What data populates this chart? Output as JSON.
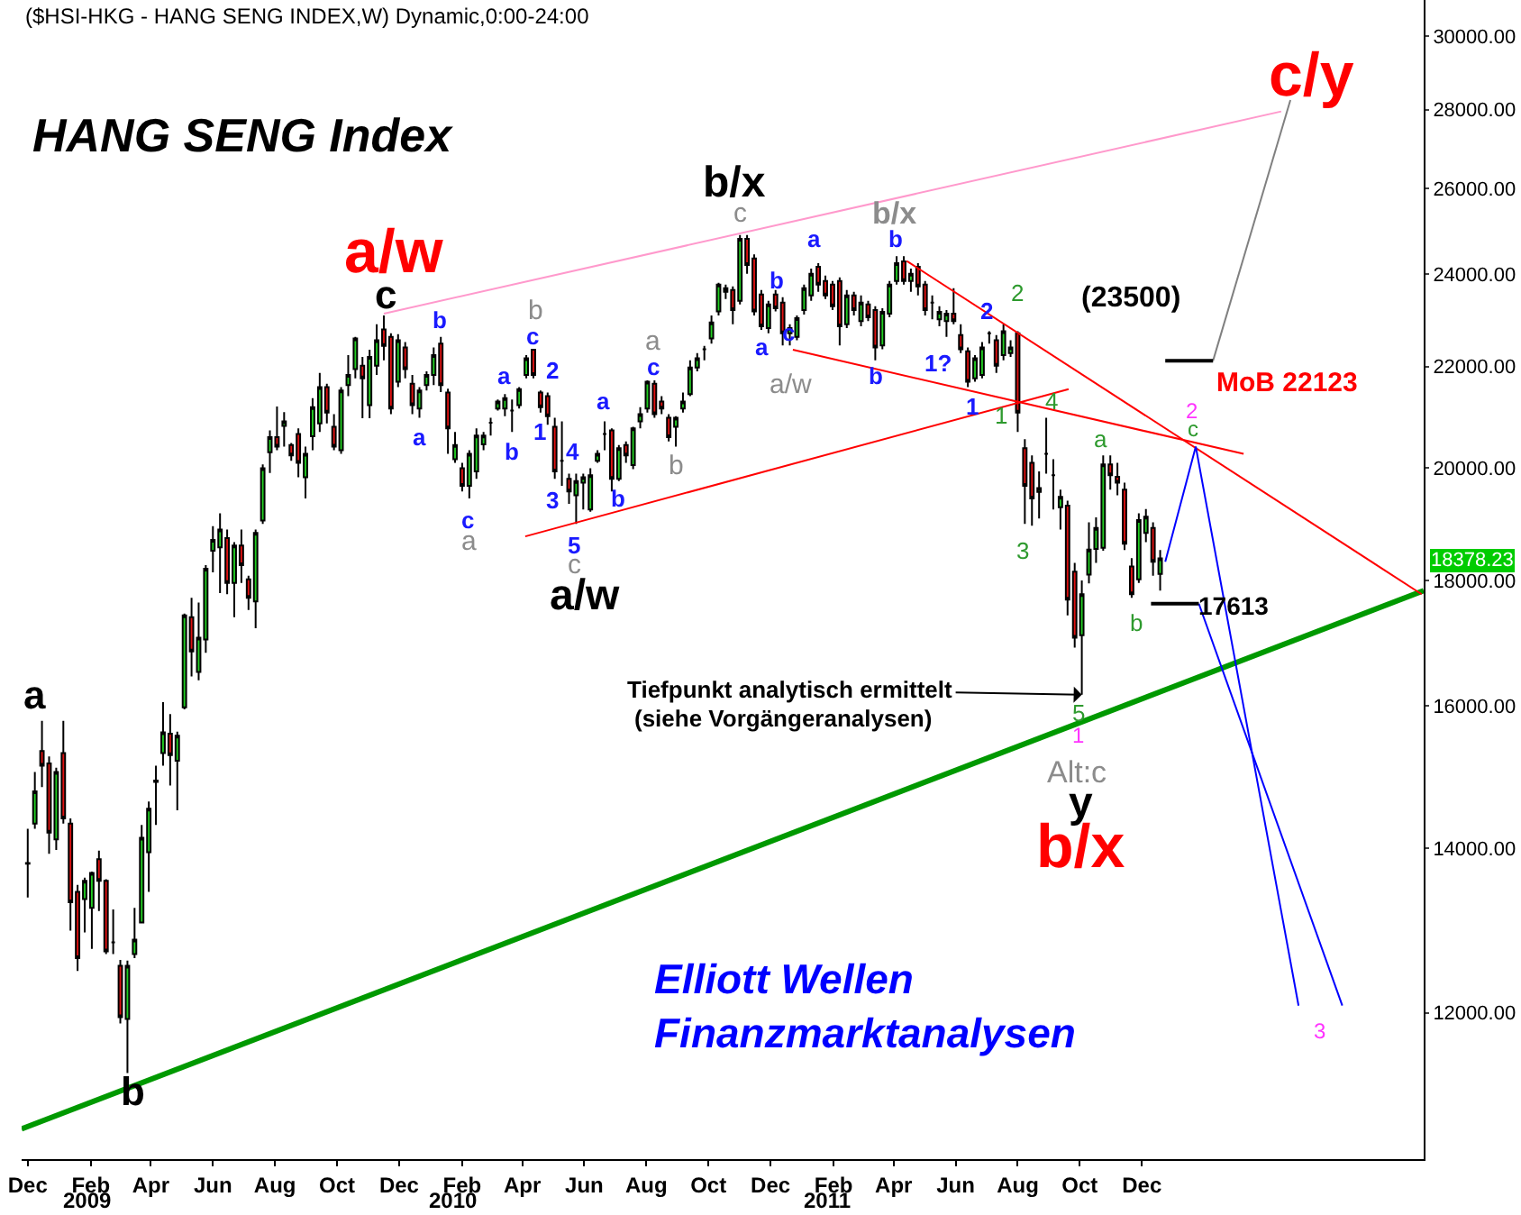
{
  "chart_data": {
    "type": "candlestick",
    "title": "HANG SENG Index",
    "subtitle": "($HSI-HKG - HANG SENG INDEX,W) Dynamic,0:00-24:00",
    "x": [
      "2008-12-01",
      "2008-12-08",
      "2008-12-15",
      "2008-12-22",
      "2008-12-29",
      "2009-01-05",
      "2009-01-12",
      "2009-01-19",
      "2009-01-26",
      "2009-02-02",
      "2009-02-09",
      "2009-02-16",
      "2009-02-23",
      "2009-03-02",
      "2009-03-09",
      "2009-03-16",
      "2009-03-23",
      "2009-03-30",
      "2009-04-06",
      "2009-04-13",
      "2009-04-20",
      "2009-04-27",
      "2009-05-04",
      "2009-05-11",
      "2009-05-18",
      "2009-05-25",
      "2009-06-01",
      "2009-06-08",
      "2009-06-15",
      "2009-06-22",
      "2009-06-29",
      "2009-07-06",
      "2009-07-13",
      "2009-07-20",
      "2009-07-27",
      "2009-08-03",
      "2009-08-10",
      "2009-08-17",
      "2009-08-24",
      "2009-08-31",
      "2009-09-07",
      "2009-09-14",
      "2009-09-21",
      "2009-09-28",
      "2009-10-05",
      "2009-10-12",
      "2009-10-19",
      "2009-10-26",
      "2009-11-02",
      "2009-11-09",
      "2009-11-16",
      "2009-11-23",
      "2009-11-30",
      "2009-12-07",
      "2009-12-14",
      "2009-12-21",
      "2009-12-28",
      "2010-01-04",
      "2010-01-11",
      "2010-01-18",
      "2010-01-25",
      "2010-02-01",
      "2010-02-08",
      "2010-02-15",
      "2010-02-22",
      "2010-03-01",
      "2010-03-08",
      "2010-03-15",
      "2010-03-22",
      "2010-03-29",
      "2010-04-05",
      "2010-04-12",
      "2010-04-19",
      "2010-04-26",
      "2010-05-03",
      "2010-05-10",
      "2010-05-17",
      "2010-05-24",
      "2010-05-31",
      "2010-06-07",
      "2010-06-14",
      "2010-06-21",
      "2010-06-28",
      "2010-07-05",
      "2010-07-12",
      "2010-07-19",
      "2010-07-26",
      "2010-08-02",
      "2010-08-09",
      "2010-08-16",
      "2010-08-23",
      "2010-08-30",
      "2010-09-06",
      "2010-09-13",
      "2010-09-20",
      "2010-09-27",
      "2010-10-04",
      "2010-10-11",
      "2010-10-18",
      "2010-10-25",
      "2010-11-01",
      "2010-11-08",
      "2010-11-15",
      "2010-11-22",
      "2010-11-29",
      "2010-12-06",
      "2010-12-13",
      "2010-12-20",
      "2010-12-27",
      "2011-01-03",
      "2011-01-10",
      "2011-01-17",
      "2011-01-24",
      "2011-01-31",
      "2011-02-07",
      "2011-02-14",
      "2011-02-21",
      "2011-02-28",
      "2011-03-07",
      "2011-03-14",
      "2011-03-21",
      "2011-03-28",
      "2011-04-04",
      "2011-04-11",
      "2011-04-18",
      "2011-04-25",
      "2011-05-02",
      "2011-05-09",
      "2011-05-16",
      "2011-05-23",
      "2011-05-30",
      "2011-06-06",
      "2011-06-13",
      "2011-06-20",
      "2011-06-27",
      "2011-07-04",
      "2011-07-11",
      "2011-07-18",
      "2011-07-25",
      "2011-08-01",
      "2011-08-08",
      "2011-08-15",
      "2011-08-22",
      "2011-08-29",
      "2011-09-05",
      "2011-09-12",
      "2011-09-19",
      "2011-09-26",
      "2011-10-03",
      "2011-10-10",
      "2011-10-17",
      "2011-10-24",
      "2011-10-31",
      "2011-11-07",
      "2011-11-14",
      "2011-11-21",
      "2011-11-28",
      "2011-12-05",
      "2011-12-12",
      "2011-12-19"
    ],
    "ohlc": [
      [
        13800,
        14260,
        13370,
        13810
      ],
      [
        14330,
        15040,
        14260,
        14770
      ],
      [
        15340,
        15780,
        14830,
        15130
      ],
      [
        15160,
        15260,
        13930,
        14210
      ],
      [
        14120,
        15100,
        13980,
        15040
      ],
      [
        15310,
        15780,
        14330,
        14400
      ],
      [
        14330,
        14400,
        12960,
        13310
      ],
      [
        13440,
        13530,
        12480,
        12630
      ],
      [
        13350,
        13620,
        12940,
        13580
      ],
      [
        13240,
        13700,
        12740,
        13680
      ],
      [
        13860,
        13970,
        13200,
        13580
      ],
      [
        13580,
        13600,
        12680,
        12710
      ],
      [
        12820,
        13220,
        12680,
        12820
      ],
      [
        12540,
        12610,
        11880,
        11950
      ],
      [
        11930,
        12600,
        11340,
        12540
      ],
      [
        12680,
        13240,
        12630,
        12850
      ],
      [
        13060,
        14310,
        13060,
        14140
      ],
      [
        13950,
        14630,
        13440,
        14530
      ],
      [
        14900,
        15130,
        14310,
        14920
      ],
      [
        15310,
        16060,
        15130,
        15610
      ],
      [
        15590,
        15880,
        14850,
        15280
      ],
      [
        15200,
        15620,
        14510,
        15560
      ],
      [
        15980,
        17450,
        15950,
        17420
      ],
      [
        17390,
        17710,
        16450,
        16840
      ],
      [
        16520,
        17630,
        16390,
        17060
      ],
      [
        17030,
        18260,
        16820,
        18200
      ],
      [
        18510,
        18940,
        18140,
        18700
      ],
      [
        18570,
        19170,
        17790,
        18880
      ],
      [
        18730,
        18880,
        17770,
        17960
      ],
      [
        17960,
        18660,
        17390,
        18600
      ],
      [
        18600,
        18880,
        17960,
        18260
      ],
      [
        18020,
        18080,
        17510,
        17710
      ],
      [
        17650,
        18880,
        17210,
        18820
      ],
      [
        19040,
        20070,
        18980,
        20000
      ],
      [
        20300,
        20720,
        19910,
        20590
      ],
      [
        20590,
        21190,
        20340,
        20410
      ],
      [
        20810,
        21080,
        20410,
        20900
      ],
      [
        20440,
        20480,
        20140,
        20240
      ],
      [
        20650,
        20760,
        19830,
        20100
      ],
      [
        19830,
        20410,
        19440,
        20270
      ],
      [
        20610,
        21360,
        20340,
        21180
      ],
      [
        20860,
        21870,
        20690,
        21580
      ],
      [
        21580,
        21650,
        20860,
        21070
      ],
      [
        20790,
        21040,
        20340,
        20410
      ],
      [
        20340,
        21580,
        20270,
        21510
      ],
      [
        21620,
        22240,
        21400,
        21830
      ],
      [
        21950,
        22620,
        21760,
        22590
      ],
      [
        22020,
        22200,
        20960,
        21760
      ],
      [
        21220,
        22350,
        20960,
        22200
      ],
      [
        22020,
        22890,
        21830,
        22550
      ],
      [
        22780,
        23080,
        22130,
        22430
      ],
      [
        22620,
        22700,
        21040,
        21150
      ],
      [
        21690,
        22680,
        21580,
        22550
      ],
      [
        22400,
        22510,
        21760,
        21950
      ],
      [
        21650,
        21830,
        21040,
        21220
      ],
      [
        21150,
        21580,
        20970,
        21510
      ],
      [
        21620,
        21900,
        21510,
        21830
      ],
      [
        21830,
        22400,
        21620,
        22240
      ],
      [
        22480,
        22620,
        21480,
        21620
      ],
      [
        21470,
        21550,
        20270,
        20760
      ],
      [
        20170,
        20690,
        20100,
        20440
      ],
      [
        20000,
        20100,
        19570,
        19670
      ],
      [
        19670,
        20340,
        19440,
        20270
      ],
      [
        19940,
        20760,
        19800,
        20620
      ],
      [
        20450,
        20690,
        20340,
        20620
      ],
      [
        20870,
        20970,
        20620,
        20870
      ],
      [
        21150,
        21330,
        21110,
        21290
      ],
      [
        21150,
        21440,
        21000,
        21360
      ],
      [
        21110,
        21330,
        20690,
        21110
      ],
      [
        21220,
        21580,
        21150,
        21540
      ],
      [
        21830,
        22240,
        21760,
        22170
      ],
      [
        22350,
        22350,
        21760,
        21830
      ],
      [
        21470,
        21510,
        21070,
        21180
      ],
      [
        21400,
        21470,
        20830,
        21000
      ],
      [
        20790,
        20970,
        19800,
        19940
      ],
      [
        20140,
        20900,
        19670,
        20140
      ],
      [
        19800,
        19900,
        19340,
        19570
      ],
      [
        19500,
        19900,
        18980,
        19760
      ],
      [
        19730,
        19900,
        19240,
        19830
      ],
      [
        19240,
        20000,
        19200,
        19870
      ],
      [
        20140,
        20340,
        20100,
        20270
      ],
      [
        20650,
        20900,
        20340,
        20650
      ],
      [
        20720,
        20760,
        19570,
        19800
      ],
      [
        19800,
        20440,
        19760,
        20380
      ],
      [
        20440,
        20510,
        20100,
        20240
      ],
      [
        20060,
        20790,
        19980,
        20760
      ],
      [
        20900,
        21180,
        20760,
        21040
      ],
      [
        21150,
        21720,
        21070,
        21690
      ],
      [
        21650,
        21720,
        20970,
        21040
      ],
      [
        21290,
        21400,
        21040,
        21150
      ],
      [
        20970,
        21040,
        20510,
        20590
      ],
      [
        20790,
        21000,
        20410,
        20970
      ],
      [
        21150,
        21470,
        21070,
        21290
      ],
      [
        21440,
        22130,
        21400,
        21980
      ],
      [
        21980,
        22280,
        21900,
        22170
      ],
      [
        22360,
        22430,
        22130,
        22360
      ],
      [
        22590,
        23080,
        22480,
        22930
      ],
      [
        23170,
        23800,
        23080,
        23760
      ],
      [
        23600,
        23760,
        23440,
        23680
      ],
      [
        23640,
        23720,
        22890,
        23200
      ],
      [
        23400,
        24890,
        23320,
        24800
      ],
      [
        24800,
        24890,
        24000,
        24200
      ],
      [
        24350,
        24440,
        23080,
        23170
      ],
      [
        23540,
        23640,
        22770,
        22850
      ],
      [
        22810,
        23400,
        22700,
        23320
      ],
      [
        23540,
        23640,
        23170,
        23240
      ],
      [
        23360,
        23480,
        22440,
        22700
      ],
      [
        22700,
        22890,
        22440,
        22810
      ],
      [
        22620,
        23080,
        22550,
        23020
      ],
      [
        23200,
        23760,
        23100,
        23680
      ],
      [
        23520,
        24120,
        23400,
        24000
      ],
      [
        24160,
        24240,
        23600,
        23760
      ],
      [
        23840,
        23960,
        23440,
        23520
      ],
      [
        23760,
        23840,
        23200,
        23280
      ],
      [
        23840,
        23920,
        22440,
        22850
      ],
      [
        22890,
        23640,
        22810,
        23520
      ],
      [
        23520,
        23600,
        23080,
        23200
      ],
      [
        22960,
        23520,
        22850,
        23360
      ],
      [
        23320,
        23400,
        22960,
        23040
      ],
      [
        23200,
        23280,
        22130,
        22400
      ],
      [
        22440,
        23240,
        22360,
        23160
      ],
      [
        23120,
        23840,
        23040,
        23760
      ],
      [
        23840,
        24400,
        23760,
        24240
      ],
      [
        24280,
        24400,
        23760,
        23840
      ],
      [
        23840,
        24120,
        23600,
        24000
      ],
      [
        24160,
        24240,
        23520,
        23720
      ],
      [
        23760,
        23840,
        23080,
        23200
      ],
      [
        23360,
        23520,
        23000,
        23360
      ],
      [
        23000,
        23280,
        22850,
        23160
      ],
      [
        22960,
        23200,
        22620,
        23120
      ],
      [
        23120,
        23680,
        22890,
        22960
      ],
      [
        22660,
        22890,
        22280,
        22360
      ],
      [
        22320,
        22400,
        21580,
        21690
      ],
      [
        21760,
        22240,
        21690,
        22170
      ],
      [
        21830,
        22510,
        21760,
        22400
      ],
      [
        22700,
        22740,
        22480,
        22700
      ],
      [
        22550,
        22660,
        21870,
        22020
      ],
      [
        22240,
        22890,
        22130,
        22740
      ],
      [
        22280,
        22550,
        22200,
        22400
      ],
      [
        22700,
        22740,
        20690,
        21070
      ],
      [
        20380,
        20550,
        18980,
        19670
      ],
      [
        20100,
        20240,
        18950,
        19440
      ],
      [
        19560,
        19940,
        19080,
        19630
      ],
      [
        20270,
        20970,
        19900,
        20270
      ],
      [
        19870,
        20170,
        19240,
        19870
      ],
      [
        19280,
        19600,
        18880,
        19470
      ],
      [
        19310,
        19400,
        17420,
        17680
      ],
      [
        18150,
        18300,
        16900,
        17060
      ],
      [
        17100,
        18000,
        16170,
        17770
      ],
      [
        18100,
        19010,
        17950,
        18530
      ],
      [
        18540,
        19100,
        18300,
        18910
      ],
      [
        18560,
        20240,
        18510,
        20070
      ],
      [
        20070,
        20240,
        19600,
        19870
      ],
      [
        19840,
        20100,
        19500,
        19730
      ],
      [
        19600,
        19730,
        18520,
        18630
      ],
      [
        18240,
        18380,
        17710,
        17770
      ],
      [
        18020,
        19170,
        17960,
        19050
      ],
      [
        18820,
        19250,
        18660,
        19110
      ],
      [
        18910,
        19010,
        18080,
        18320
      ],
      [
        18110,
        18520,
        17830,
        18378.23
      ]
    ],
    "series": [
      {
        "type": "line",
        "color": "#ff99cc",
        "x": [
          "2009-11-16",
          "2012-04-16"
        ],
        "values": [
          23120,
          27950
        ]
      },
      {
        "type": "line",
        "color": "#009900",
        "x": [
          "2008-11-25",
          "2012-09-03"
        ],
        "values": [
          10760,
          17830
        ]
      },
      {
        "type": "line",
        "color": "#ff0000",
        "x": [
          "2010-04-04",
          "2011-09-20"
        ],
        "values": [
          18760,
          21540
        ]
      },
      {
        "type": "line",
        "color": "#ff0000",
        "x": [
          "2010-12-23",
          "2012-03-10"
        ],
        "values": [
          22350,
          20270
        ]
      },
      {
        "type": "line",
        "color": "#ff0000",
        "x": [
          "2011-04-14",
          "2012-09-01"
        ],
        "values": [
          24290,
          17770
        ]
      },
      {
        "type": "line",
        "color": "#0000ff",
        "x": [
          "2011-12-24",
          "2012-01-23",
          "2012-05-03"
        ],
        "values": [
          18320,
          20410,
          12080
        ]
      },
      {
        "type": "line",
        "color": "#0000ff",
        "x": [
          "2012-01-26",
          "2012-06-15"
        ],
        "values": [
          17613,
          12080
        ]
      },
      {
        "type": "line",
        "color": "#808080",
        "x": [
          "2012-02-09",
          "2012-04-25"
        ],
        "values": [
          22123,
          28250
        ]
      },
      {
        "type": "line",
        "color": "#000000",
        "x": [
          "2011-12-24",
          "2012-02-09"
        ],
        "values": [
          22123,
          22123
        ]
      },
      {
        "type": "line",
        "color": "#000000",
        "x": [
          "2011-12-10",
          "2012-01-26"
        ],
        "values": [
          17613,
          17613
        ]
      }
    ],
    "xlim": [
      "2008-11-25",
      "2012-09-03"
    ],
    "xticks": [
      {
        "value": "2008-12-01",
        "label": "Dec"
      },
      {
        "value": "2009-02-01",
        "label": "Feb"
      },
      {
        "value": "2009-04-01",
        "label": "Apr"
      },
      {
        "value": "2009-06-01",
        "label": "Jun"
      },
      {
        "value": "2009-08-01",
        "label": "Aug"
      },
      {
        "value": "2009-10-01",
        "label": "Oct"
      },
      {
        "value": "2009-12-01",
        "label": "Dec"
      },
      {
        "value": "2010-02-01",
        "label": "Feb"
      },
      {
        "value": "2010-04-01",
        "label": "Apr"
      },
      {
        "value": "2010-06-01",
        "label": "Jun"
      },
      {
        "value": "2010-08-01",
        "label": "Aug"
      },
      {
        "value": "2010-10-01",
        "label": "Oct"
      },
      {
        "value": "2010-12-01",
        "label": "Dec"
      },
      {
        "value": "2011-02-01",
        "label": "Feb"
      },
      {
        "value": "2011-04-01",
        "label": "Apr"
      },
      {
        "value": "2011-06-01",
        "label": "Jun"
      },
      {
        "value": "2011-08-01",
        "label": "Aug"
      },
      {
        "value": "2011-10-01",
        "label": "Oct"
      },
      {
        "value": "2011-12-01",
        "label": "Dec"
      }
    ],
    "ylim": [
      10460,
      31030
    ],
    "yticks": [
      {
        "value": 12000,
        "label": "12000.00"
      },
      {
        "value": 14000,
        "label": "14000.00"
      },
      {
        "value": 16000,
        "label": "16000.00"
      },
      {
        "value": 18000,
        "label": "18000.00"
      },
      {
        "value": 20000,
        "label": "20000.00"
      },
      {
        "value": 22000,
        "label": "22000.00"
      },
      {
        "value": 24000,
        "label": "24000.00"
      },
      {
        "value": 26000,
        "label": "26000.00"
      },
      {
        "value": 28000,
        "label": "28000.00"
      },
      {
        "value": 30000,
        "label": "30000.00"
      }
    ],
    "log": "y",
    "grid": false,
    "annotations": [
      "a",
      "b",
      "c",
      "a/w",
      "b/x",
      "c",
      "a/w",
      "c",
      "5",
      "b/x",
      "b",
      "a",
      "c/y",
      "(23500)",
      "MoB 22123",
      "2",
      "c",
      "a",
      "3",
      "b",
      "17613",
      "5",
      "1",
      "Alt:c",
      "y",
      "b/x",
      "3",
      {
        "text": "Tiefpunkt analytisch ermittelt",
        "x": "2011-10-03",
        "y": 16170
      },
      "(siehe Vorgängeranalysen)",
      "b",
      "a",
      "c",
      "a",
      "b",
      "c",
      "a",
      "2",
      "b",
      "1",
      "4",
      "3",
      "b",
      "a",
      "a",
      "c",
      "b",
      "b",
      "a",
      "c",
      "a/w",
      "b",
      "1?",
      "2",
      "2",
      "1",
      "1",
      "4",
      "18378.23",
      "Elliott Wellen",
      "Finanzmarktanalysen",
      "2009",
      "2010",
      "2011"
    ]
  }
}
